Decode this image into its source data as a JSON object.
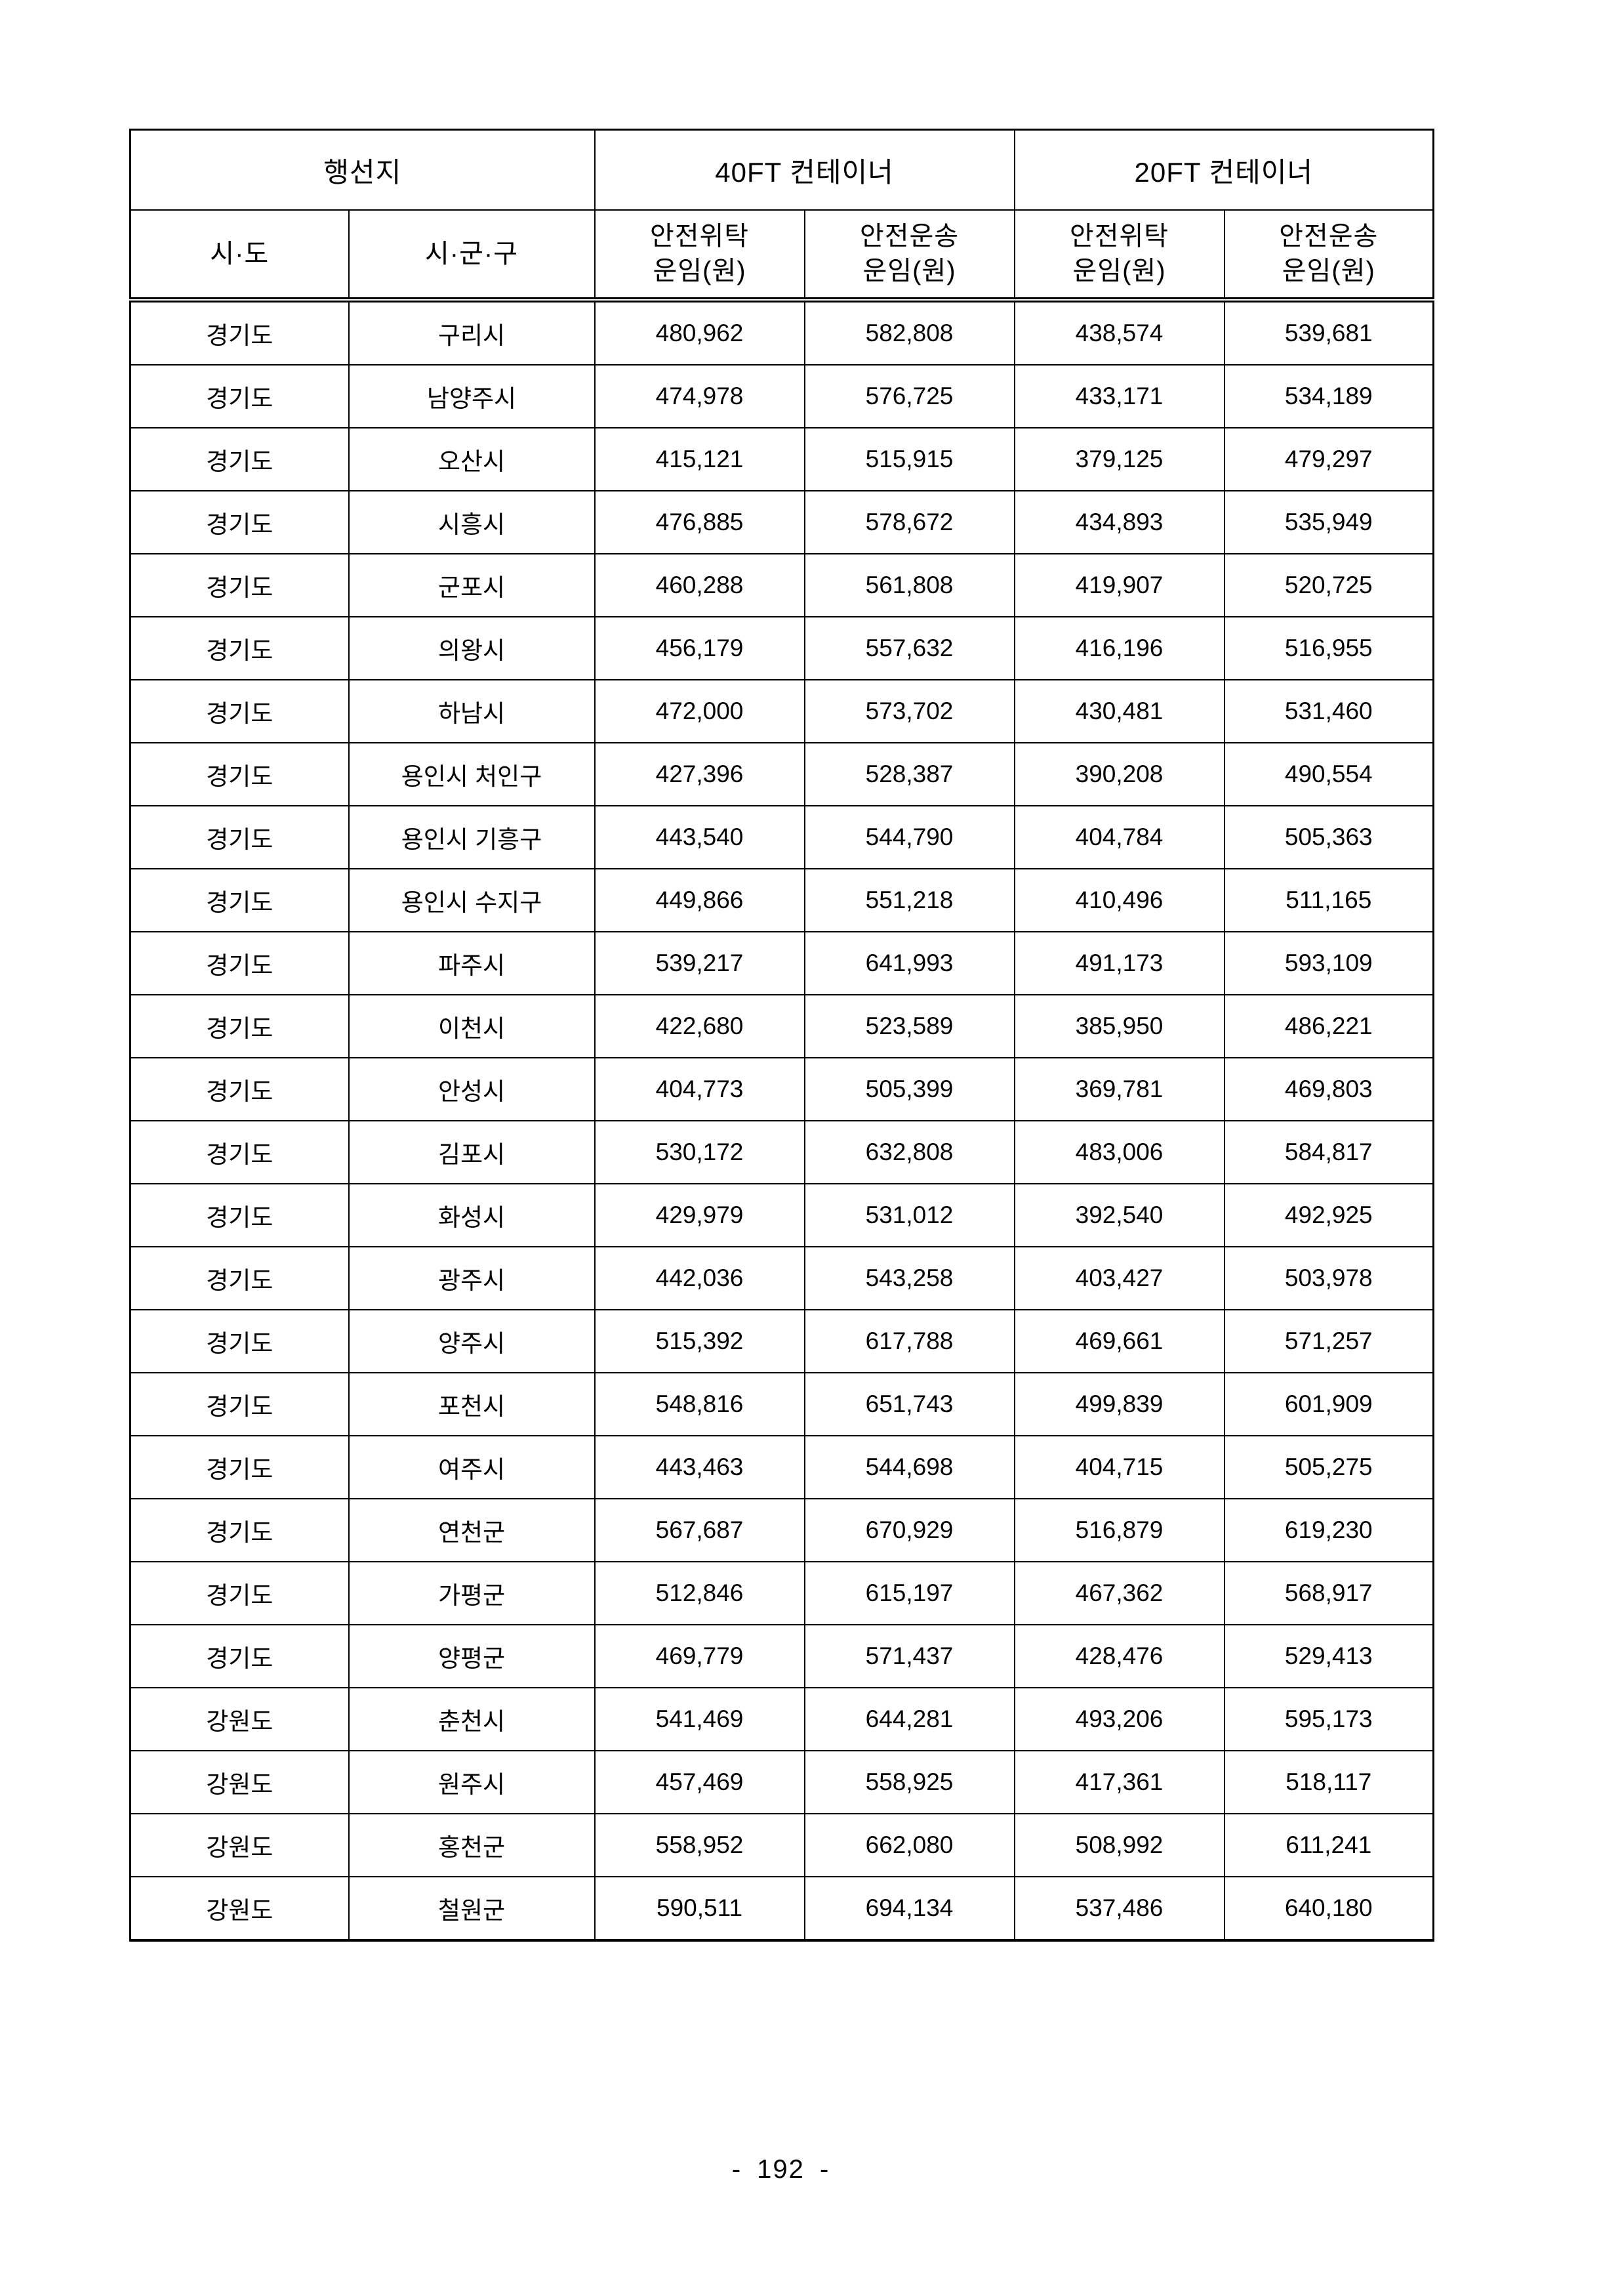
{
  "page": {
    "number_label": "- 192 -"
  },
  "table": {
    "group_header": {
      "destination": "행선지",
      "container_40ft": "40FT 컨테이너",
      "container_20ft": "20FT 컨테이너"
    },
    "column_header": {
      "sido": "시·도",
      "sigungu": "시·군·구",
      "safe_consign_fare": "안전위탁\n운임(원)",
      "safe_transport_fare": "안전운송\n운임(원)"
    },
    "rows": [
      [
        "경기도",
        "구리시",
        "480,962",
        "582,808",
        "438,574",
        "539,681"
      ],
      [
        "경기도",
        "남양주시",
        "474,978",
        "576,725",
        "433,171",
        "534,189"
      ],
      [
        "경기도",
        "오산시",
        "415,121",
        "515,915",
        "379,125",
        "479,297"
      ],
      [
        "경기도",
        "시흥시",
        "476,885",
        "578,672",
        "434,893",
        "535,949"
      ],
      [
        "경기도",
        "군포시",
        "460,288",
        "561,808",
        "419,907",
        "520,725"
      ],
      [
        "경기도",
        "의왕시",
        "456,179",
        "557,632",
        "416,196",
        "516,955"
      ],
      [
        "경기도",
        "하남시",
        "472,000",
        "573,702",
        "430,481",
        "531,460"
      ],
      [
        "경기도",
        "용인시 처인구",
        "427,396",
        "528,387",
        "390,208",
        "490,554"
      ],
      [
        "경기도",
        "용인시 기흥구",
        "443,540",
        "544,790",
        "404,784",
        "505,363"
      ],
      [
        "경기도",
        "용인시 수지구",
        "449,866",
        "551,218",
        "410,496",
        "511,165"
      ],
      [
        "경기도",
        "파주시",
        "539,217",
        "641,993",
        "491,173",
        "593,109"
      ],
      [
        "경기도",
        "이천시",
        "422,680",
        "523,589",
        "385,950",
        "486,221"
      ],
      [
        "경기도",
        "안성시",
        "404,773",
        "505,399",
        "369,781",
        "469,803"
      ],
      [
        "경기도",
        "김포시",
        "530,172",
        "632,808",
        "483,006",
        "584,817"
      ],
      [
        "경기도",
        "화성시",
        "429,979",
        "531,012",
        "392,540",
        "492,925"
      ],
      [
        "경기도",
        "광주시",
        "442,036",
        "543,258",
        "403,427",
        "503,978"
      ],
      [
        "경기도",
        "양주시",
        "515,392",
        "617,788",
        "469,661",
        "571,257"
      ],
      [
        "경기도",
        "포천시",
        "548,816",
        "651,743",
        "499,839",
        "601,909"
      ],
      [
        "경기도",
        "여주시",
        "443,463",
        "544,698",
        "404,715",
        "505,275"
      ],
      [
        "경기도",
        "연천군",
        "567,687",
        "670,929",
        "516,879",
        "619,230"
      ],
      [
        "경기도",
        "가평군",
        "512,846",
        "615,197",
        "467,362",
        "568,917"
      ],
      [
        "경기도",
        "양평군",
        "469,779",
        "571,437",
        "428,476",
        "529,413"
      ],
      [
        "강원도",
        "춘천시",
        "541,469",
        "644,281",
        "493,206",
        "595,173"
      ],
      [
        "강원도",
        "원주시",
        "457,469",
        "558,925",
        "417,361",
        "518,117"
      ],
      [
        "강원도",
        "홍천군",
        "558,952",
        "662,080",
        "508,992",
        "611,241"
      ],
      [
        "강원도",
        "철원군",
        "590,511",
        "694,134",
        "537,486",
        "640,180"
      ]
    ]
  }
}
